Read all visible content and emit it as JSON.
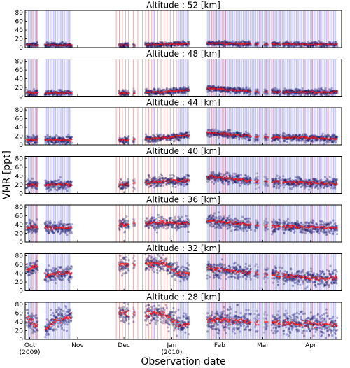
{
  "chart_data": {
    "type": "scatter",
    "ylabel": "VMR [ppt]",
    "xlabel": "Observation date",
    "yticks": [
      0,
      20,
      40,
      60,
      80
    ],
    "ylim": [
      0,
      85
    ],
    "xlim": [
      0,
      205
    ],
    "x_unit": "days since 2009-09-28",
    "x_ticks": [
      {
        "d": 3,
        "label": "Oct",
        "sub": "(2009)"
      },
      {
        "d": 34,
        "label": "Nov",
        "sub": ""
      },
      {
        "d": 64,
        "label": "Dec",
        "sub": ""
      },
      {
        "d": 95,
        "label": "Jan",
        "sub": "(2010)"
      },
      {
        "d": 126,
        "label": "Feb",
        "sub": ""
      },
      {
        "d": 154,
        "label": "Mar",
        "sub": ""
      },
      {
        "d": 185,
        "label": "Apr",
        "sub": ""
      }
    ],
    "segments": [
      {
        "s": 1,
        "e": 8,
        "w": 1.0
      },
      {
        "s": 13,
        "e": 30,
        "w": 1.0
      },
      {
        "s": 61,
        "e": 67,
        "w": 1.0
      },
      {
        "s": 70,
        "e": 71,
        "w": 0.6
      },
      {
        "s": 78,
        "e": 90,
        "w": 1.0
      },
      {
        "s": 91,
        "e": 106,
        "w": 1.0
      },
      {
        "s": 118,
        "e": 133,
        "w": 1.0
      },
      {
        "s": 134,
        "e": 140,
        "w": 1.0
      },
      {
        "s": 141,
        "e": 146,
        "w": 1.0
      },
      {
        "s": 149,
        "e": 151,
        "w": 0.7
      },
      {
        "s": 155,
        "e": 157,
        "w": 0.6
      },
      {
        "s": 160,
        "e": 165,
        "w": 1.0
      },
      {
        "s": 167,
        "e": 180,
        "w": 1.0
      },
      {
        "s": 181,
        "e": 190,
        "w": 1.0
      },
      {
        "s": 191,
        "e": 196,
        "w": 1.0
      },
      {
        "s": 197,
        "e": 202,
        "w": 1.0
      }
    ],
    "blue_bands": [
      [
        2,
        8
      ],
      [
        13,
        30
      ],
      [
        83,
        84
      ],
      [
        99,
        106
      ],
      [
        118,
        202
      ]
    ],
    "red_lines": [
      5,
      7.5,
      59,
      61,
      63,
      65,
      67,
      70,
      73,
      76,
      78,
      80,
      82,
      84,
      86,
      88,
      90,
      92,
      94,
      96,
      98,
      121,
      122,
      124,
      126,
      128,
      130,
      152,
      156,
      160,
      165,
      181,
      186,
      191,
      196
    ],
    "panels": [
      {
        "title": "Altitude : 52 [km]",
        "means": [
          {
            "d": 0,
            "y": 6
          },
          {
            "d": 60,
            "y": 5
          },
          {
            "d": 90,
            "y": 7
          },
          {
            "d": 120,
            "y": 10
          },
          {
            "d": 150,
            "y": 8
          },
          {
            "d": 205,
            "y": 7
          }
        ],
        "spread": 3
      },
      {
        "title": "Altitude : 48 [km]",
        "means": [
          {
            "d": 0,
            "y": 8
          },
          {
            "d": 60,
            "y": 6
          },
          {
            "d": 90,
            "y": 10
          },
          {
            "d": 105,
            "y": 14
          },
          {
            "d": 120,
            "y": 18
          },
          {
            "d": 150,
            "y": 10
          },
          {
            "d": 205,
            "y": 9
          }
        ],
        "spread": 4
      },
      {
        "title": "Altitude : 44 [km]",
        "means": [
          {
            "d": 0,
            "y": 12
          },
          {
            "d": 60,
            "y": 10
          },
          {
            "d": 90,
            "y": 16
          },
          {
            "d": 105,
            "y": 22
          },
          {
            "d": 120,
            "y": 28
          },
          {
            "d": 150,
            "y": 18
          },
          {
            "d": 205,
            "y": 14
          }
        ],
        "spread": 5
      },
      {
        "title": "Altitude : 40 [km]",
        "means": [
          {
            "d": 0,
            "y": 20
          },
          {
            "d": 60,
            "y": 20
          },
          {
            "d": 90,
            "y": 28
          },
          {
            "d": 105,
            "y": 30
          },
          {
            "d": 120,
            "y": 38
          },
          {
            "d": 150,
            "y": 28
          },
          {
            "d": 205,
            "y": 22
          }
        ],
        "spread": 7
      },
      {
        "title": "Altitude : 36 [km]",
        "means": [
          {
            "d": 0,
            "y": 34
          },
          {
            "d": 30,
            "y": 32
          },
          {
            "d": 60,
            "y": 40
          },
          {
            "d": 90,
            "y": 45
          },
          {
            "d": 105,
            "y": 42
          },
          {
            "d": 120,
            "y": 48
          },
          {
            "d": 150,
            "y": 38
          },
          {
            "d": 205,
            "y": 32
          }
        ],
        "spread": 8
      },
      {
        "title": "Altitude : 32 [km]",
        "means": [
          {
            "d": 0,
            "y": 45
          },
          {
            "d": 8,
            "y": 58
          },
          {
            "d": 13,
            "y": 35
          },
          {
            "d": 30,
            "y": 42
          },
          {
            "d": 60,
            "y": 58
          },
          {
            "d": 90,
            "y": 62
          },
          {
            "d": 100,
            "y": 38
          },
          {
            "d": 120,
            "y": 50
          },
          {
            "d": 150,
            "y": 40
          },
          {
            "d": 190,
            "y": 28
          },
          {
            "d": 205,
            "y": 32
          }
        ],
        "spread": 10
      },
      {
        "title": "Altitude : 28 [km]",
        "means": [
          {
            "d": 0,
            "y": 50
          },
          {
            "d": 13,
            "y": 20
          },
          {
            "d": 20,
            "y": 45
          },
          {
            "d": 30,
            "y": 52
          },
          {
            "d": 60,
            "y": 60
          },
          {
            "d": 90,
            "y": 58
          },
          {
            "d": 100,
            "y": 32
          },
          {
            "d": 120,
            "y": 45
          },
          {
            "d": 150,
            "y": 40
          },
          {
            "d": 185,
            "y": 35
          },
          {
            "d": 205,
            "y": 30
          }
        ],
        "spread": 14
      }
    ]
  }
}
